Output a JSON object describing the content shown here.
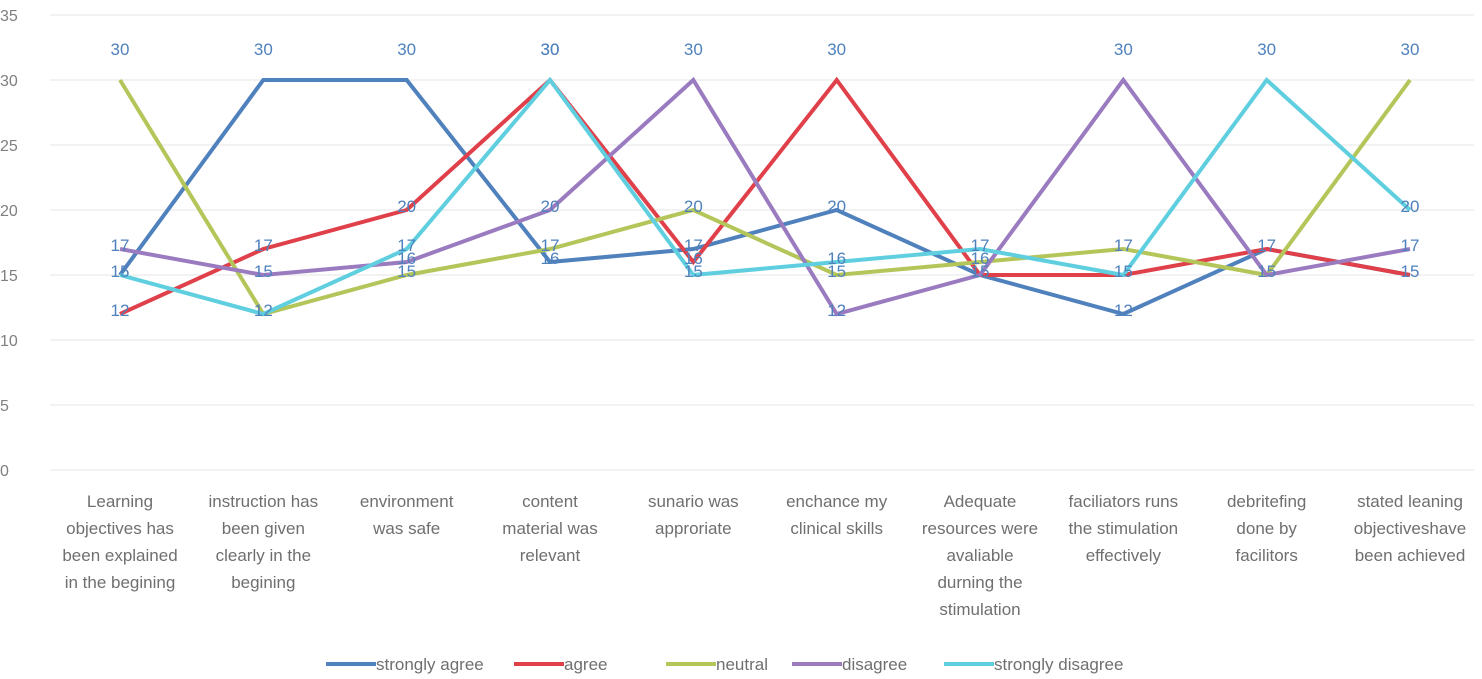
{
  "chart_data": {
    "type": "line",
    "title": "",
    "xlabel": "",
    "ylabel": "",
    "ylim": [
      0,
      35
    ],
    "yticks": [
      0,
      5,
      10,
      15,
      20,
      25,
      30,
      35
    ],
    "grid": true,
    "legend_position": "bottom",
    "categories": [
      [
        "Learning",
        "objectives has",
        "been explained",
        "in the begining"
      ],
      [
        "instruction has",
        "been given",
        "clearly in the",
        "begining"
      ],
      [
        "environment",
        "was safe"
      ],
      [
        "content",
        "material was",
        "relevant"
      ],
      [
        "sunario was",
        "approriate"
      ],
      [
        "enchance my",
        "clinical skills"
      ],
      [
        "Adequate",
        "resources were",
        "avaliable",
        "durning the",
        "stimulation"
      ],
      [
        "faciliators runs",
        "the stimulation",
        "effectively"
      ],
      [
        "debritefing",
        "done by",
        "facilitors"
      ],
      [
        "stated leaning",
        "objectiveshave",
        "been achieved"
      ]
    ],
    "series": [
      {
        "name": "strongly agree",
        "color": "#4f81bd",
        "values": [
          15,
          30,
          30,
          16,
          17,
          20,
          15,
          12,
          17,
          15
        ]
      },
      {
        "name": "agree",
        "color": "#e0404a",
        "values": [
          12,
          17,
          20,
          30,
          16,
          30,
          15,
          15,
          17,
          15
        ]
      },
      {
        "name": "neutral",
        "color": "#b4c55a",
        "values": [
          30,
          12,
          15,
          17,
          20,
          15,
          16,
          17,
          15,
          30
        ]
      },
      {
        "name": "disagree",
        "color": "#9b7bc0",
        "values": [
          17,
          15,
          16,
          20,
          30,
          12,
          15,
          30,
          15,
          17
        ]
      },
      {
        "name": "strongly disagree",
        "color": "#5fcfe0",
        "values": [
          15,
          12,
          17,
          30,
          15,
          16,
          17,
          15,
          30,
          20
        ]
      }
    ],
    "data_labels": [
      [
        "30",
        "17",
        "15",
        "12"
      ],
      [
        "30",
        "17",
        "15",
        "12"
      ],
      [
        "30",
        "20",
        "17",
        "16",
        "15"
      ],
      [
        "30",
        "30",
        "20",
        "17",
        "16"
      ],
      [
        "30",
        "20",
        "17",
        "16",
        "15"
      ],
      [
        "30",
        "20",
        "16",
        "15",
        "12"
      ],
      [
        "17",
        "16",
        "15"
      ],
      [
        "30",
        "17",
        "15",
        "12"
      ],
      [
        "30",
        "17",
        "15"
      ],
      [
        "30",
        "20",
        "17",
        "15"
      ]
    ]
  }
}
